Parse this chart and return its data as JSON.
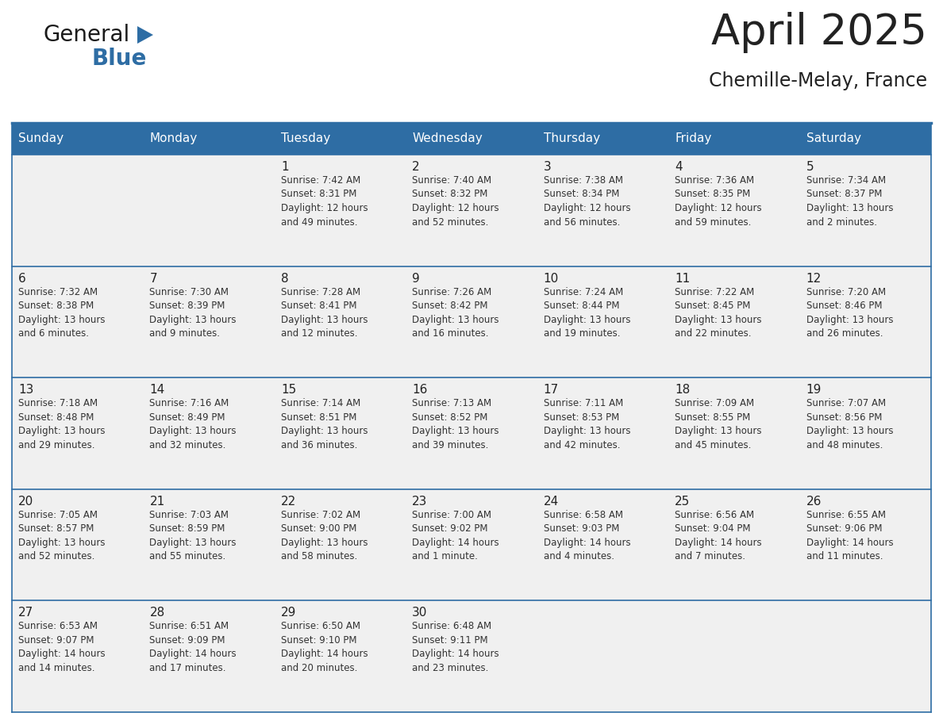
{
  "title": "April 2025",
  "subtitle": "Chemille-Melay, France",
  "header_bg": "#2E6DA4",
  "header_text_color": "#FFFFFF",
  "cell_bg": "#F0F0F0",
  "cell_text_color": "#333333",
  "day_num_color": "#222222",
  "border_color": "#2E6DA4",
  "days_of_week": [
    "Sunday",
    "Monday",
    "Tuesday",
    "Wednesday",
    "Thursday",
    "Friday",
    "Saturday"
  ],
  "weeks": [
    [
      {
        "day": "",
        "info": ""
      },
      {
        "day": "",
        "info": ""
      },
      {
        "day": "1",
        "info": "Sunrise: 7:42 AM\nSunset: 8:31 PM\nDaylight: 12 hours\nand 49 minutes."
      },
      {
        "day": "2",
        "info": "Sunrise: 7:40 AM\nSunset: 8:32 PM\nDaylight: 12 hours\nand 52 minutes."
      },
      {
        "day": "3",
        "info": "Sunrise: 7:38 AM\nSunset: 8:34 PM\nDaylight: 12 hours\nand 56 minutes."
      },
      {
        "day": "4",
        "info": "Sunrise: 7:36 AM\nSunset: 8:35 PM\nDaylight: 12 hours\nand 59 minutes."
      },
      {
        "day": "5",
        "info": "Sunrise: 7:34 AM\nSunset: 8:37 PM\nDaylight: 13 hours\nand 2 minutes."
      }
    ],
    [
      {
        "day": "6",
        "info": "Sunrise: 7:32 AM\nSunset: 8:38 PM\nDaylight: 13 hours\nand 6 minutes."
      },
      {
        "day": "7",
        "info": "Sunrise: 7:30 AM\nSunset: 8:39 PM\nDaylight: 13 hours\nand 9 minutes."
      },
      {
        "day": "8",
        "info": "Sunrise: 7:28 AM\nSunset: 8:41 PM\nDaylight: 13 hours\nand 12 minutes."
      },
      {
        "day": "9",
        "info": "Sunrise: 7:26 AM\nSunset: 8:42 PM\nDaylight: 13 hours\nand 16 minutes."
      },
      {
        "day": "10",
        "info": "Sunrise: 7:24 AM\nSunset: 8:44 PM\nDaylight: 13 hours\nand 19 minutes."
      },
      {
        "day": "11",
        "info": "Sunrise: 7:22 AM\nSunset: 8:45 PM\nDaylight: 13 hours\nand 22 minutes."
      },
      {
        "day": "12",
        "info": "Sunrise: 7:20 AM\nSunset: 8:46 PM\nDaylight: 13 hours\nand 26 minutes."
      }
    ],
    [
      {
        "day": "13",
        "info": "Sunrise: 7:18 AM\nSunset: 8:48 PM\nDaylight: 13 hours\nand 29 minutes."
      },
      {
        "day": "14",
        "info": "Sunrise: 7:16 AM\nSunset: 8:49 PM\nDaylight: 13 hours\nand 32 minutes."
      },
      {
        "day": "15",
        "info": "Sunrise: 7:14 AM\nSunset: 8:51 PM\nDaylight: 13 hours\nand 36 minutes."
      },
      {
        "day": "16",
        "info": "Sunrise: 7:13 AM\nSunset: 8:52 PM\nDaylight: 13 hours\nand 39 minutes."
      },
      {
        "day": "17",
        "info": "Sunrise: 7:11 AM\nSunset: 8:53 PM\nDaylight: 13 hours\nand 42 minutes."
      },
      {
        "day": "18",
        "info": "Sunrise: 7:09 AM\nSunset: 8:55 PM\nDaylight: 13 hours\nand 45 minutes."
      },
      {
        "day": "19",
        "info": "Sunrise: 7:07 AM\nSunset: 8:56 PM\nDaylight: 13 hours\nand 48 minutes."
      }
    ],
    [
      {
        "day": "20",
        "info": "Sunrise: 7:05 AM\nSunset: 8:57 PM\nDaylight: 13 hours\nand 52 minutes."
      },
      {
        "day": "21",
        "info": "Sunrise: 7:03 AM\nSunset: 8:59 PM\nDaylight: 13 hours\nand 55 minutes."
      },
      {
        "day": "22",
        "info": "Sunrise: 7:02 AM\nSunset: 9:00 PM\nDaylight: 13 hours\nand 58 minutes."
      },
      {
        "day": "23",
        "info": "Sunrise: 7:00 AM\nSunset: 9:02 PM\nDaylight: 14 hours\nand 1 minute."
      },
      {
        "day": "24",
        "info": "Sunrise: 6:58 AM\nSunset: 9:03 PM\nDaylight: 14 hours\nand 4 minutes."
      },
      {
        "day": "25",
        "info": "Sunrise: 6:56 AM\nSunset: 9:04 PM\nDaylight: 14 hours\nand 7 minutes."
      },
      {
        "day": "26",
        "info": "Sunrise: 6:55 AM\nSunset: 9:06 PM\nDaylight: 14 hours\nand 11 minutes."
      }
    ],
    [
      {
        "day": "27",
        "info": "Sunrise: 6:53 AM\nSunset: 9:07 PM\nDaylight: 14 hours\nand 14 minutes."
      },
      {
        "day": "28",
        "info": "Sunrise: 6:51 AM\nSunset: 9:09 PM\nDaylight: 14 hours\nand 17 minutes."
      },
      {
        "day": "29",
        "info": "Sunrise: 6:50 AM\nSunset: 9:10 PM\nDaylight: 14 hours\nand 20 minutes."
      },
      {
        "day": "30",
        "info": "Sunrise: 6:48 AM\nSunset: 9:11 PM\nDaylight: 14 hours\nand 23 minutes."
      },
      {
        "day": "",
        "info": ""
      },
      {
        "day": "",
        "info": ""
      },
      {
        "day": "",
        "info": ""
      }
    ]
  ],
  "logo_text_general": "General",
  "logo_text_blue": "Blue",
  "logo_color_general": "#1a1a1a",
  "logo_color_blue": "#2E6DA4",
  "logo_triangle_color": "#2E6DA4",
  "title_fontsize": 38,
  "subtitle_fontsize": 17,
  "header_fontsize": 11,
  "day_num_fontsize": 11,
  "info_fontsize": 8.5,
  "logo_general_fontsize": 20,
  "logo_blue_fontsize": 20
}
